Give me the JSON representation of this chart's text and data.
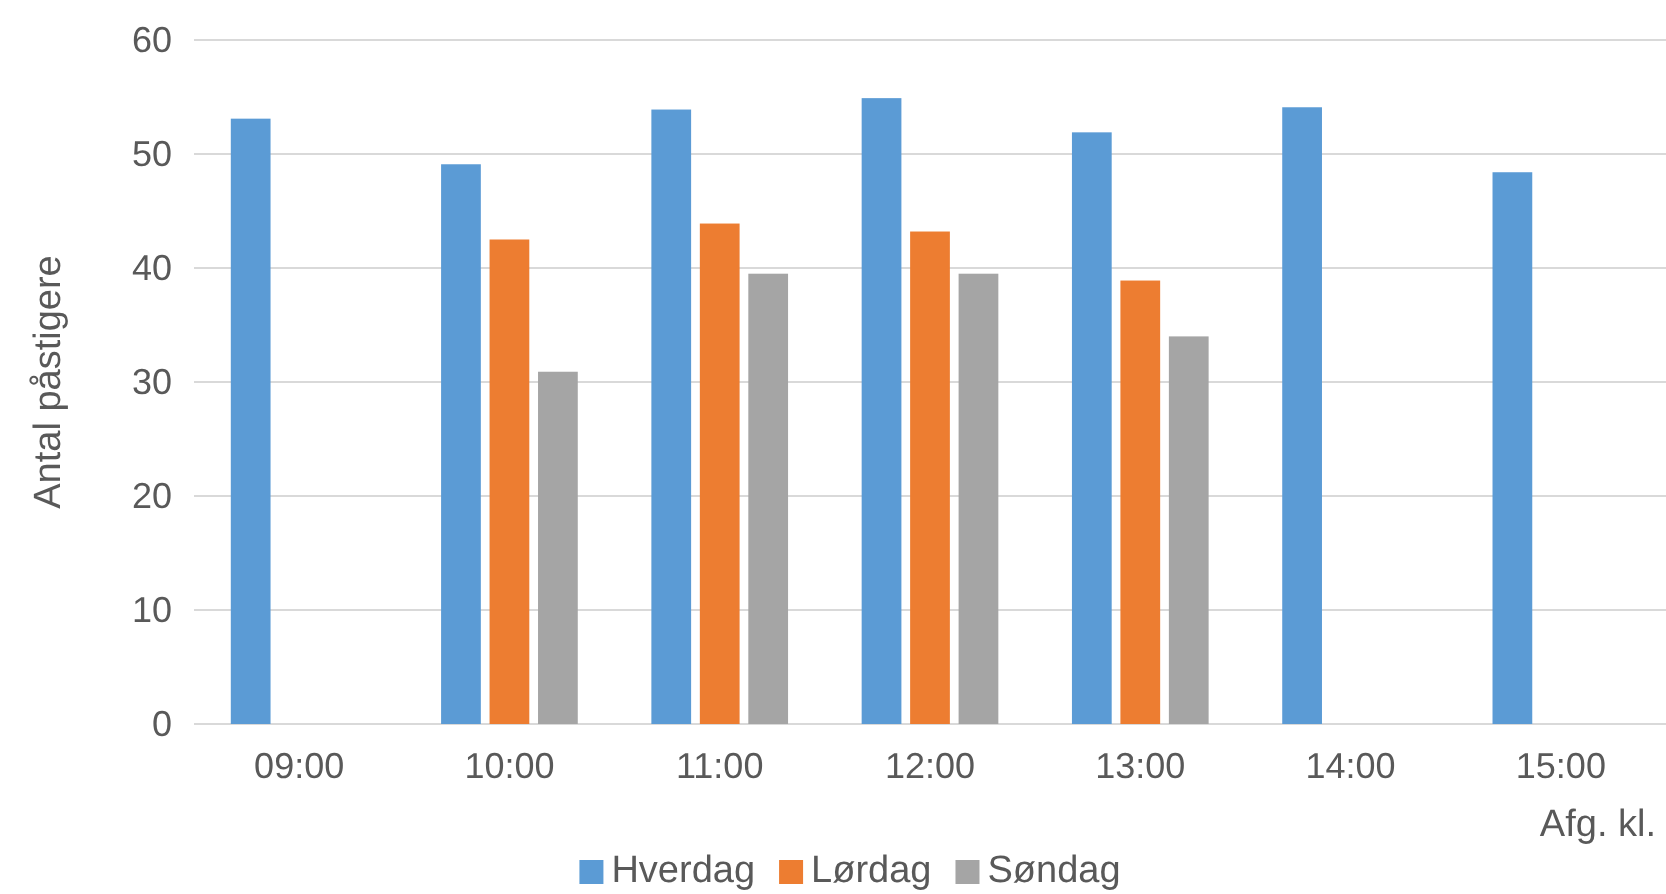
{
  "chart_data": {
    "type": "bar",
    "ylabel": "Antal påstigere",
    "xlabel": "Afg. kl.",
    "categories": [
      "09:00",
      "10:00",
      "11:00",
      "12:00",
      "13:00",
      "14:00",
      "15:00"
    ],
    "series": [
      {
        "name": "Hverdag",
        "color": "#5b9bd5",
        "values": [
          53.1,
          49.1,
          53.9,
          54.9,
          51.9,
          54.1,
          48.4
        ]
      },
      {
        "name": "Lørdag",
        "color": "#ed7d31",
        "values": [
          null,
          42.5,
          43.9,
          43.2,
          38.9,
          null,
          null
        ]
      },
      {
        "name": "Søndag",
        "color": "#a5a5a5",
        "values": [
          null,
          30.9,
          39.5,
          39.5,
          34.0,
          null,
          null
        ]
      }
    ],
    "ylim": [
      0,
      60
    ],
    "yticks": [
      0,
      10,
      20,
      30,
      40,
      50,
      60
    ],
    "grid": "y",
    "legend": "bottom"
  }
}
